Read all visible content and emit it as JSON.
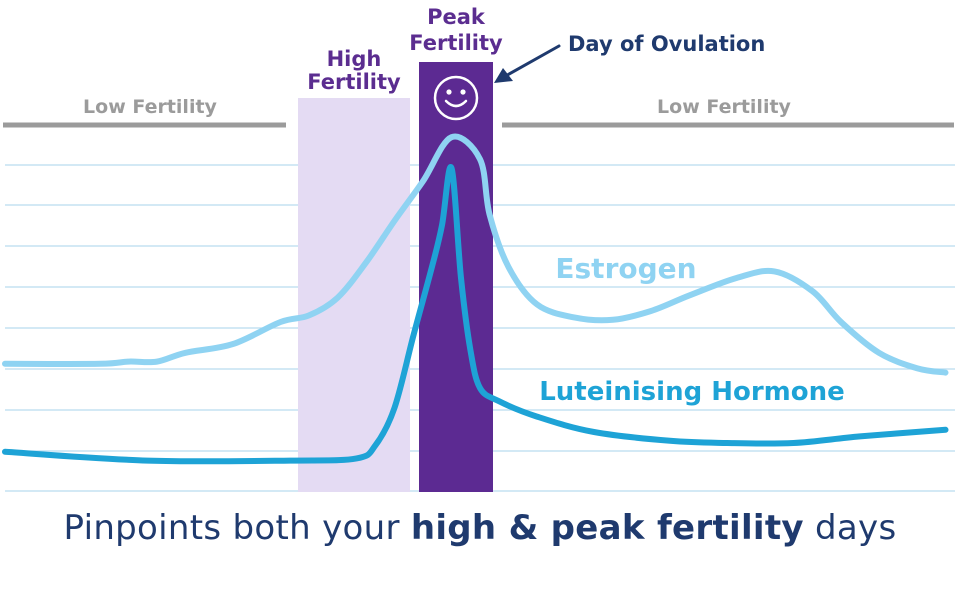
{
  "chart_data": {
    "type": "line",
    "title": "",
    "xlabel": "",
    "ylabel": "",
    "grid": true,
    "series": [
      {
        "name": "Estrogen",
        "color": "#8fd3f2",
        "points": [
          [
            0,
            21
          ],
          [
            10,
            21
          ],
          [
            13,
            22
          ],
          [
            16,
            22
          ],
          [
            19,
            26
          ],
          [
            24,
            30
          ],
          [
            29,
            40
          ],
          [
            32,
            43
          ],
          [
            35,
            51
          ],
          [
            38,
            67
          ],
          [
            41,
            86
          ],
          [
            44,
            104
          ],
          [
            47,
            124
          ],
          [
            50,
            114
          ],
          [
            51,
            89
          ],
          [
            53,
            65
          ],
          [
            56,
            48
          ],
          [
            60,
            42
          ],
          [
            64,
            41
          ],
          [
            68,
            45
          ],
          [
            72,
            52
          ],
          [
            77,
            60
          ],
          [
            81,
            63
          ],
          [
            85,
            54
          ],
          [
            88,
            40
          ],
          [
            92,
            26
          ],
          [
            96,
            19
          ],
          [
            99,
            17
          ]
        ]
      },
      {
        "name": "Luteinising Hormone",
        "color": "#1ea3d6",
        "points": [
          [
            0,
            -19
          ],
          [
            15,
            -23
          ],
          [
            30,
            -23
          ],
          [
            37,
            -22
          ],
          [
            39,
            -16
          ],
          [
            41,
            1
          ],
          [
            43,
            34
          ],
          [
            45,
            66
          ],
          [
            46,
            84
          ],
          [
            47,
            110
          ],
          [
            48,
            60
          ],
          [
            49,
            27
          ],
          [
            50,
            10
          ],
          [
            52,
            4
          ],
          [
            56,
            -3
          ],
          [
            62,
            -10
          ],
          [
            70,
            -14
          ],
          [
            76,
            -15
          ],
          [
            83,
            -15
          ],
          [
            90,
            -12
          ],
          [
            99,
            -9
          ]
        ]
      }
    ],
    "zones": [
      {
        "label": "Low Fertility",
        "color": "#9b9b9b"
      },
      {
        "label": "High Fertility",
        "color": "#e4dbf3",
        "label_color": "#5b2d90"
      },
      {
        "label": "Peak Fertility",
        "color": "#5c2a92",
        "label_color": "#5b2d90"
      },
      {
        "label": "Low Fertility",
        "color": "#9b9b9b"
      }
    ]
  },
  "annotations": {
    "ovulation": "Day of Ovulation",
    "ovulation_color": "#1f3a6e",
    "smiley_icon": "smiley-face-icon"
  },
  "caption": {
    "prefix": "Pinpoints both your ",
    "bold": "high & peak fertility",
    "suffix": " days"
  }
}
